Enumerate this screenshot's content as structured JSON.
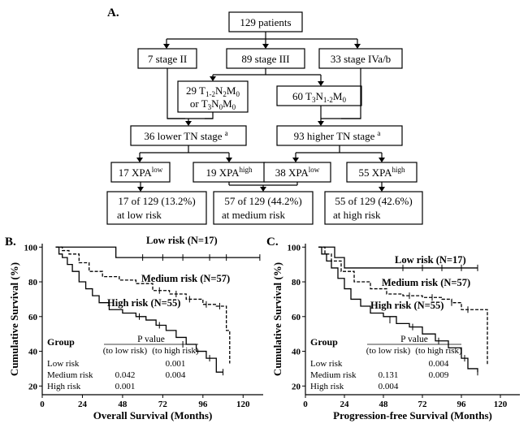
{
  "panel_a": {
    "letter": "A.",
    "root": "129 patients",
    "stage_ii": "7 stage II",
    "stage_iii": "89 stage III",
    "stage_iva": "33 stage IVa/b",
    "sub_left_line1": "29 T1-2N2M0",
    "sub_left_line2": "or T3N0M0",
    "sub_right": "60 T3N1-2M0",
    "lower_tn": "36 lower TN stage",
    "higher_tn": "93 higher TN stage",
    "sup_a": "a",
    "xpa_17": "17 XPA",
    "xpa_19": "19 XPA",
    "xpa_38": "38 XPA",
    "xpa_55": "55 XPA",
    "sup_low": "low",
    "sup_high": "high",
    "risk_low_1": "17 of 129 (13.2%)",
    "risk_low_2": "at low risk",
    "risk_med_1": "57 of 129 (44.2%)",
    "risk_med_2": "at medium risk",
    "risk_high_1": "55 of 129 (42.6%)",
    "risk_high_2": "at high risk"
  },
  "chart_data": [
    {
      "letter": "B.",
      "type": "line",
      "xlabel": "Overall Survival (Months)",
      "ylabel": "Cumulative Survival (%)",
      "xticks": [
        0,
        24,
        48,
        72,
        96,
        120
      ],
      "yticks": [
        20,
        40,
        60,
        80,
        100
      ],
      "xlim": [
        0,
        132
      ],
      "ylim": [
        15,
        102
      ],
      "series": [
        {
          "name": "Low risk (N=17)",
          "style": "solid",
          "points": [
            [
              8,
              100
            ],
            [
              44,
              100
            ],
            [
              44,
              94
            ],
            [
              130,
              94
            ]
          ],
          "censors": [
            [
              60,
              94
            ],
            [
              72,
              94
            ],
            [
              84,
              94
            ],
            [
              100,
              94
            ],
            [
              110,
              94
            ],
            [
              130,
              94
            ]
          ]
        },
        {
          "name": "Medium risk (N=57)",
          "style": "dashed",
          "points": [
            [
              8,
              100
            ],
            [
              12,
              98
            ],
            [
              16,
              96
            ],
            [
              22,
              91
            ],
            [
              28,
              86
            ],
            [
              36,
              83
            ],
            [
              46,
              81
            ],
            [
              56,
              79
            ],
            [
              66,
              75
            ],
            [
              76,
              73
            ],
            [
              86,
              70
            ],
            [
              96,
              67
            ],
            [
              104,
              66
            ],
            [
              110,
              66
            ],
            [
              110,
              52
            ],
            [
              112,
              52
            ],
            [
              112,
              33
            ]
          ],
          "censors": [
            [
              70,
              75
            ],
            [
              80,
              73
            ],
            [
              88,
              70
            ],
            [
              98,
              67
            ],
            [
              106,
              66
            ]
          ]
        },
        {
          "name": "High risk (N=55)",
          "style": "solid",
          "points": [
            [
              8,
              100
            ],
            [
              10,
              96
            ],
            [
              12,
              94
            ],
            [
              15,
              90
            ],
            [
              18,
              86
            ],
            [
              22,
              80
            ],
            [
              26,
              76
            ],
            [
              30,
              72
            ],
            [
              34,
              68
            ],
            [
              40,
              64
            ],
            [
              48,
              62
            ],
            [
              56,
              60
            ],
            [
              62,
              58
            ],
            [
              68,
              55
            ],
            [
              74,
              52
            ],
            [
              80,
              48
            ],
            [
              86,
              44
            ],
            [
              92,
              40
            ],
            [
              98,
              36
            ],
            [
              104,
              28
            ],
            [
              108,
              28
            ]
          ],
          "censors": [
            [
              58,
              60
            ],
            [
              70,
              55
            ],
            [
              84,
              44
            ],
            [
              100,
              36
            ],
            [
              108,
              28
            ]
          ]
        }
      ],
      "table": {
        "group_header": "Group",
        "pvalue_header": "P value",
        "col1": "(to low risk)",
        "col2": "(to high risk)",
        "rows": [
          {
            "group": "Low risk",
            "c1": "",
            "c2": "0.001"
          },
          {
            "group": "Medium risk",
            "c1": "0.042",
            "c2": "0.004"
          },
          {
            "group": "High risk",
            "c1": "0.001",
            "c2": ""
          }
        ]
      }
    },
    {
      "letter": "C.",
      "type": "line",
      "xlabel": "Progression-free Survival (Months)",
      "ylabel": "Cumulative Survival (%)",
      "xticks": [
        0,
        24,
        48,
        72,
        96,
        120
      ],
      "yticks": [
        20,
        40,
        60,
        80,
        100
      ],
      "xlim": [
        0,
        132
      ],
      "ylim": [
        15,
        102
      ],
      "series": [
        {
          "name": "Low risk (N=17)",
          "style": "solid",
          "points": [
            [
              8,
              100
            ],
            [
              18,
              100
            ],
            [
              18,
              94
            ],
            [
              24,
              94
            ],
            [
              24,
              88
            ],
            [
              106,
              88
            ]
          ],
          "censors": [
            [
              60,
              88
            ],
            [
              72,
              88
            ],
            [
              84,
              88
            ],
            [
              96,
              88
            ],
            [
              106,
              88
            ]
          ]
        },
        {
          "name": "Medium risk (N=57)",
          "style": "dashed",
          "points": [
            [
              8,
              100
            ],
            [
              12,
              96
            ],
            [
              16,
              92
            ],
            [
              22,
              86
            ],
            [
              30,
              80
            ],
            [
              40,
              76
            ],
            [
              50,
              73
            ],
            [
              60,
              72
            ],
            [
              72,
              71
            ],
            [
              84,
              70
            ],
            [
              90,
              68
            ],
            [
              96,
              64
            ],
            [
              106,
              64
            ],
            [
              110,
              64
            ],
            [
              112,
              32
            ]
          ],
          "censors": [
            [
              64,
              72
            ],
            [
              78,
              71
            ],
            [
              90,
              68
            ],
            [
              100,
              64
            ]
          ]
        },
        {
          "name": "High risk (N=55)",
          "style": "solid",
          "points": [
            [
              8,
              100
            ],
            [
              10,
              96
            ],
            [
              13,
              92
            ],
            [
              16,
              88
            ],
            [
              20,
              82
            ],
            [
              24,
              76
            ],
            [
              28,
              70
            ],
            [
              34,
              66
            ],
            [
              40,
              62
            ],
            [
              48,
              60
            ],
            [
              56,
              56
            ],
            [
              64,
              54
            ],
            [
              72,
              50
            ],
            [
              80,
              46
            ],
            [
              88,
              42
            ],
            [
              96,
              36
            ],
            [
              100,
              30
            ],
            [
              106,
              28
            ]
          ],
          "censors": [
            [
              52,
              58
            ],
            [
              66,
              54
            ],
            [
              82,
              46
            ],
            [
              98,
              36
            ],
            [
              106,
              28
            ]
          ]
        }
      ],
      "table": {
        "group_header": "Group",
        "pvalue_header": "P value",
        "col1": "(to low risk)",
        "col2": "(to high risk)",
        "rows": [
          {
            "group": "Low risk",
            "c1": "",
            "c2": "0.004"
          },
          {
            "group": "Medium risk",
            "c1": "0.131",
            "c2": "0.009"
          },
          {
            "group": "High risk",
            "c1": "0.004",
            "c2": ""
          }
        ]
      }
    }
  ]
}
